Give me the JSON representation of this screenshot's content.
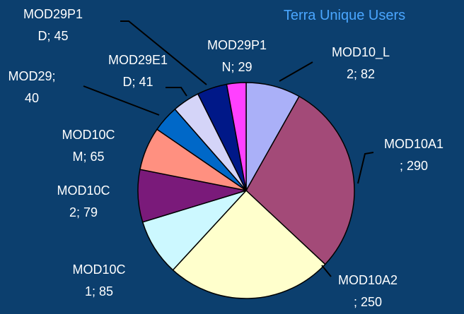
{
  "chart_data": {
    "type": "pie",
    "title": "Terra Unique Users",
    "categories": [
      "MOD10_L2",
      "MOD10A1",
      "MOD10A2",
      "MOD10C1",
      "MOD10C2",
      "MOD10CM",
      "MOD29",
      "MOD29E1D",
      "MOD29P1D",
      "MOD29P1N"
    ],
    "values": [
      82,
      290,
      250,
      85,
      79,
      65,
      40,
      41,
      45,
      29
    ],
    "value_labels": [
      "MOD10_L\n2; 82",
      "MOD10A1\n; 290",
      "MOD10A2\n; 250",
      "MOD10C\n1; 85",
      "MOD10C\n2; 79",
      "MOD10C\nM; 65",
      "MOD29;\n40",
      "MOD29E1\nD; 41",
      "MOD29P1\nD; 45",
      "MOD29P1\nN; 29"
    ],
    "colors": [
      "#aab0f8",
      "#a34a78",
      "#ffffcc",
      "#ccf8ff",
      "#7a1a7a",
      "#ff9080",
      "#0068c8",
      "#d4d4f8",
      "#001888",
      "#ff40ff"
    ]
  }
}
